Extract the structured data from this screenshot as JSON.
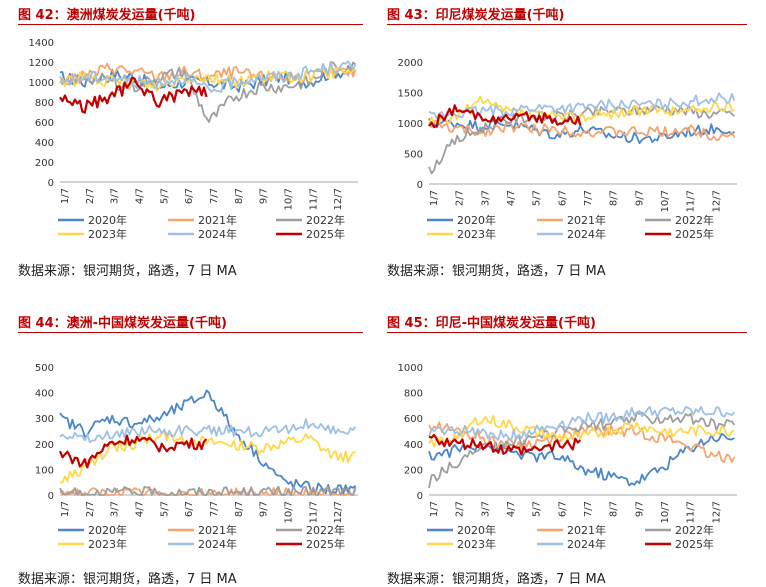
{
  "palette": {
    "c2020": "#4a86c8",
    "c2021": "#f4a46e",
    "c2022": "#9e9e9e",
    "c2023": "#ffd84a",
    "c2024": "#9fc0e4",
    "c2025": "#c00000",
    "title": "#c00000"
  },
  "panels": [
    {
      "title": "图 42：澳洲煤炭发运量(千吨)",
      "source": "数据来源：银河期货，路透，7 日 MA"
    },
    {
      "title": "图 43：印尼煤炭发运量(千吨)",
      "source": "数据来源：银河期货，路透，7 日 MA"
    },
    {
      "title": "图 44：澳洲-中国煤炭发运量(千吨)",
      "source": "数据来源：银河期货，路透，7 日 MA"
    },
    {
      "title": "图 45：印尼-中国煤炭发运量(千吨)",
      "source": "数据来源：银河期货，路透，7 日 MA"
    }
  ],
  "chart_data": [
    {
      "type": "line",
      "x": [
        "1/7",
        "2/7",
        "3/7",
        "4/7",
        "5/7",
        "6/7",
        "7/7",
        "8/7",
        "9/7",
        "10/7",
        "11/7",
        "12/7"
      ],
      "ylim": [
        0,
        1400
      ],
      "yticks": [
        0,
        200,
        400,
        600,
        800,
        1000,
        1200,
        1400
      ],
      "legend_position": "bottom",
      "series": [
        {
          "name": "2020年",
          "color": "#4a86c8",
          "values": [
            1050,
            1000,
            1080,
            1050,
            950,
            1000,
            1000,
            950,
            1000,
            1050,
            1000,
            1100
          ]
        },
        {
          "name": "2021年",
          "color": "#f4a46e",
          "values": [
            1000,
            1050,
            1150,
            1100,
            1050,
            1100,
            1050,
            1100,
            1050,
            1050,
            1050,
            1100
          ]
        },
        {
          "name": "2022年",
          "color": "#9e9e9e",
          "values": [
            950,
            1050,
            1000,
            950,
            1050,
            1100,
            600,
            850,
            950,
            950,
            1000,
            1150
          ]
        },
        {
          "name": "2023年",
          "color": "#ffd84a",
          "values": [
            1000,
            1050,
            1000,
            1000,
            950,
            1050,
            1050,
            1000,
            1050,
            1050,
            1050,
            1100
          ]
        },
        {
          "name": "2024年",
          "color": "#9fc0e4",
          "values": [
            1000,
            1050,
            1050,
            1000,
            1000,
            1050,
            900,
            1000,
            1050,
            1050,
            1100,
            1150
          ]
        },
        {
          "name": "2025年",
          "color": "#c00000",
          "values": [
            850,
            750,
            850,
            1000,
            800,
            900,
            null,
            null,
            null,
            null,
            null,
            null
          ]
        }
      ]
    },
    {
      "type": "line",
      "x": [
        "1/7",
        "2/7",
        "3/7",
        "4/7",
        "5/7",
        "6/7",
        "7/7",
        "8/7",
        "9/7",
        "10/7",
        "11/7",
        "12/7"
      ],
      "ylim": [
        0,
        2000
      ],
      "yticks": [
        0,
        500,
        1000,
        1500,
        2000
      ],
      "legend_position": "bottom",
      "series": [
        {
          "name": "2020年",
          "color": "#4a86c8",
          "values": [
            1000,
            1000,
            950,
            1000,
            900,
            800,
            900,
            800,
            750,
            750,
            850,
            900
          ]
        },
        {
          "name": "2021年",
          "color": "#f4a46e",
          "values": [
            1000,
            900,
            850,
            950,
            900,
            900,
            850,
            850,
            850,
            850,
            900,
            800
          ]
        },
        {
          "name": "2022年",
          "color": "#9e9e9e",
          "values": [
            200,
            700,
            900,
            1050,
            1100,
            1100,
            1150,
            1200,
            1200,
            1250,
            1200,
            1150
          ]
        },
        {
          "name": "2023年",
          "color": "#ffd84a",
          "values": [
            1000,
            1100,
            1350,
            1200,
            1150,
            1100,
            1100,
            1150,
            1200,
            1200,
            1200,
            1250
          ]
        },
        {
          "name": "2024年",
          "color": "#9fc0e4",
          "values": [
            1100,
            1150,
            1200,
            1200,
            1250,
            1250,
            1250,
            1300,
            1300,
            1300,
            1350,
            1400
          ]
        },
        {
          "name": "2025年",
          "color": "#c00000",
          "values": [
            950,
            1200,
            1100,
            1050,
            1100,
            1050,
            null,
            null,
            null,
            null,
            null,
            null
          ]
        }
      ]
    },
    {
      "type": "line",
      "x": [
        "1/7",
        "2/7",
        "3/7",
        "4/7",
        "5/7",
        "6/7",
        "7/7",
        "8/7",
        "9/7",
        "10/7",
        "11/7",
        "12/7"
      ],
      "ylim": [
        0,
        500
      ],
      "yticks": [
        0,
        100,
        200,
        300,
        400,
        500
      ],
      "legend_position": "bottom",
      "series": [
        {
          "name": "2020年",
          "color": "#4a86c8",
          "values": [
            300,
            250,
            300,
            280,
            300,
            350,
            400,
            250,
            150,
            50,
            30,
            20
          ]
        },
        {
          "name": "2021年",
          "color": "#f4a46e",
          "values": [
            10,
            5,
            5,
            5,
            5,
            5,
            5,
            5,
            5,
            5,
            5,
            5
          ]
        },
        {
          "name": "2022年",
          "color": "#9e9e9e",
          "values": [
            5,
            5,
            10,
            10,
            10,
            10,
            10,
            10,
            10,
            10,
            10,
            15
          ]
        },
        {
          "name": "2023年",
          "color": "#ffd84a",
          "values": [
            50,
            100,
            180,
            200,
            230,
            220,
            200,
            200,
            180,
            200,
            220,
            150
          ]
        },
        {
          "name": "2024年",
          "color": "#9fc0e4",
          "values": [
            250,
            220,
            230,
            250,
            250,
            250,
            250,
            250,
            250,
            250,
            280,
            250
          ]
        },
        {
          "name": "2025年",
          "color": "#c00000",
          "values": [
            170,
            120,
            200,
            220,
            190,
            200,
            null,
            null,
            null,
            null,
            null,
            null
          ]
        }
      ]
    },
    {
      "type": "line",
      "x": [
        "1/7",
        "2/7",
        "3/7",
        "4/7",
        "5/7",
        "6/7",
        "7/7",
        "8/7",
        "9/7",
        "10/7",
        "11/7",
        "12/7"
      ],
      "ylim": [
        0,
        1000
      ],
      "yticks": [
        0,
        200,
        400,
        600,
        800,
        1000
      ],
      "legend_position": "bottom",
      "series": [
        {
          "name": "2020年",
          "color": "#4a86c8",
          "values": [
            300,
            350,
            400,
            350,
            300,
            300,
            200,
            150,
            100,
            200,
            350,
            450
          ]
        },
        {
          "name": "2021年",
          "color": "#f4a46e",
          "values": [
            550,
            500,
            450,
            400,
            400,
            450,
            500,
            500,
            500,
            450,
            400,
            300
          ]
        },
        {
          "name": "2022年",
          "color": "#9e9e9e",
          "values": [
            100,
            250,
            350,
            400,
            450,
            500,
            550,
            550,
            600,
            600,
            600,
            550
          ]
        },
        {
          "name": "2023年",
          "color": "#ffd84a",
          "values": [
            400,
            450,
            600,
            550,
            500,
            450,
            450,
            500,
            550,
            500,
            500,
            500
          ]
        },
        {
          "name": "2024年",
          "color": "#9fc0e4",
          "values": [
            500,
            500,
            500,
            450,
            500,
            550,
            600,
            600,
            650,
            650,
            650,
            650
          ]
        },
        {
          "name": "2025年",
          "color": "#c00000",
          "values": [
            450,
            400,
            400,
            350,
            350,
            400,
            null,
            null,
            null,
            null,
            null,
            null
          ]
        }
      ]
    }
  ]
}
